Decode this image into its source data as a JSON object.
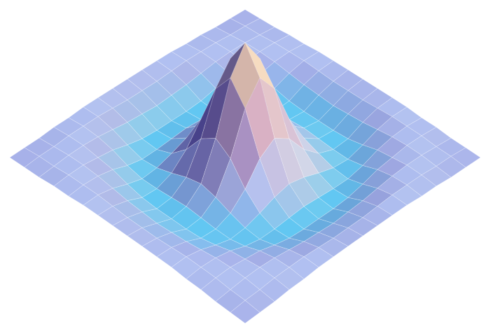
{
  "chart_data": {
    "type": "surface",
    "tick_labels": false,
    "x": [
      -8,
      -7,
      -6,
      -5,
      -4,
      -3,
      -2,
      -1,
      0,
      1,
      2,
      3,
      4,
      5,
      6,
      7,
      8
    ],
    "y": [
      -8,
      -7,
      -6,
      -5,
      -4,
      -3,
      -2,
      -1,
      0,
      1,
      2,
      3,
      4,
      5,
      6,
      7,
      8
    ],
    "z": [
      [
        0,
        0,
        0,
        0.01,
        0.01,
        0.02,
        0.02,
        0.02,
        0.02,
        0.02,
        0.02,
        0.02,
        0.01,
        0.01,
        0,
        0,
        0
      ],
      [
        0,
        0.01,
        0.01,
        0.02,
        0.02,
        0.02,
        0.01,
        0,
        0,
        0,
        0.01,
        0.02,
        0.02,
        0.02,
        0.01,
        0.01,
        0
      ],
      [
        0,
        0.01,
        0.02,
        0.02,
        0.01,
        -0.01,
        -0.03,
        -0.04,
        -0.05,
        -0.04,
        -0.03,
        -0.01,
        0.01,
        0.02,
        0.02,
        0.01,
        0
      ],
      [
        0.01,
        0.02,
        0.02,
        0,
        -0.02,
        -0.06,
        -0.09,
        -0.1,
        -0.1,
        -0.1,
        -0.09,
        -0.06,
        -0.02,
        0,
        0.02,
        0.02,
        0.01
      ],
      [
        0.01,
        0.02,
        0.01,
        -0.02,
        -0.07,
        -0.1,
        -0.1,
        -0.09,
        -0.08,
        -0.09,
        -0.1,
        -0.1,
        -0.07,
        -0.02,
        0.01,
        0.02,
        0.01
      ],
      [
        0.02,
        0.02,
        -0.01,
        -0.06,
        -0.1,
        -0.09,
        -0.05,
        0,
        0.03,
        0,
        -0.05,
        -0.09,
        -0.1,
        -0.06,
        -0.01,
        0.02,
        0.02
      ],
      [
        0.02,
        0.01,
        -0.03,
        -0.09,
        -0.1,
        -0.05,
        0.07,
        0.25,
        0.34,
        0.25,
        0.07,
        -0.05,
        -0.1,
        -0.09,
        -0.03,
        0.01,
        0.02
      ],
      [
        0.02,
        0,
        -0.04,
        -0.1,
        -0.09,
        0,
        0.25,
        0.6,
        0.78,
        0.6,
        0.25,
        0,
        -0.09,
        -0.1,
        -0.04,
        0,
        0.02
      ],
      [
        0.02,
        0,
        -0.05,
        -0.1,
        -0.08,
        0.03,
        0.34,
        0.78,
        1,
        0.78,
        0.34,
        0.03,
        -0.08,
        -0.1,
        -0.05,
        0,
        0.02
      ],
      [
        0.02,
        0,
        -0.04,
        -0.1,
        -0.09,
        0,
        0.25,
        0.6,
        0.78,
        0.6,
        0.25,
        0,
        -0.09,
        -0.1,
        -0.04,
        0,
        0.02
      ],
      [
        0.02,
        0.01,
        -0.03,
        -0.09,
        -0.1,
        -0.05,
        0.07,
        0.25,
        0.34,
        0.25,
        0.07,
        -0.05,
        -0.1,
        -0.09,
        -0.03,
        0.01,
        0.02
      ],
      [
        0.02,
        0.02,
        -0.01,
        -0.06,
        -0.1,
        -0.09,
        -0.05,
        0,
        0.03,
        0,
        -0.05,
        -0.09,
        -0.1,
        -0.06,
        -0.01,
        0.02,
        0.02
      ],
      [
        0.01,
        0.02,
        0.01,
        -0.02,
        -0.07,
        -0.1,
        -0.1,
        -0.09,
        -0.08,
        -0.09,
        -0.1,
        -0.1,
        -0.07,
        -0.02,
        0.01,
        0.02,
        0.01
      ],
      [
        0.01,
        0.02,
        0.02,
        0,
        -0.02,
        -0.06,
        -0.09,
        -0.1,
        -0.1,
        -0.1,
        -0.09,
        -0.06,
        -0.02,
        0,
        0.02,
        0.02,
        0.01
      ],
      [
        0,
        0.01,
        0.02,
        0.02,
        0.01,
        -0.01,
        -0.03,
        -0.04,
        -0.05,
        -0.04,
        -0.03,
        -0.01,
        0.01,
        0.02,
        0.02,
        0.01,
        0
      ],
      [
        0,
        0.01,
        0.01,
        0.02,
        0.02,
        0.02,
        0.01,
        0,
        0,
        0,
        0.01,
        0.02,
        0.02,
        0.02,
        0.01,
        0.01,
        0
      ],
      [
        0,
        0,
        0,
        0.01,
        0.01,
        0.02,
        0.02,
        0.02,
        0.02,
        0.02,
        0.02,
        0.02,
        0.01,
        0.01,
        0,
        0,
        0
      ]
    ]
  }
}
